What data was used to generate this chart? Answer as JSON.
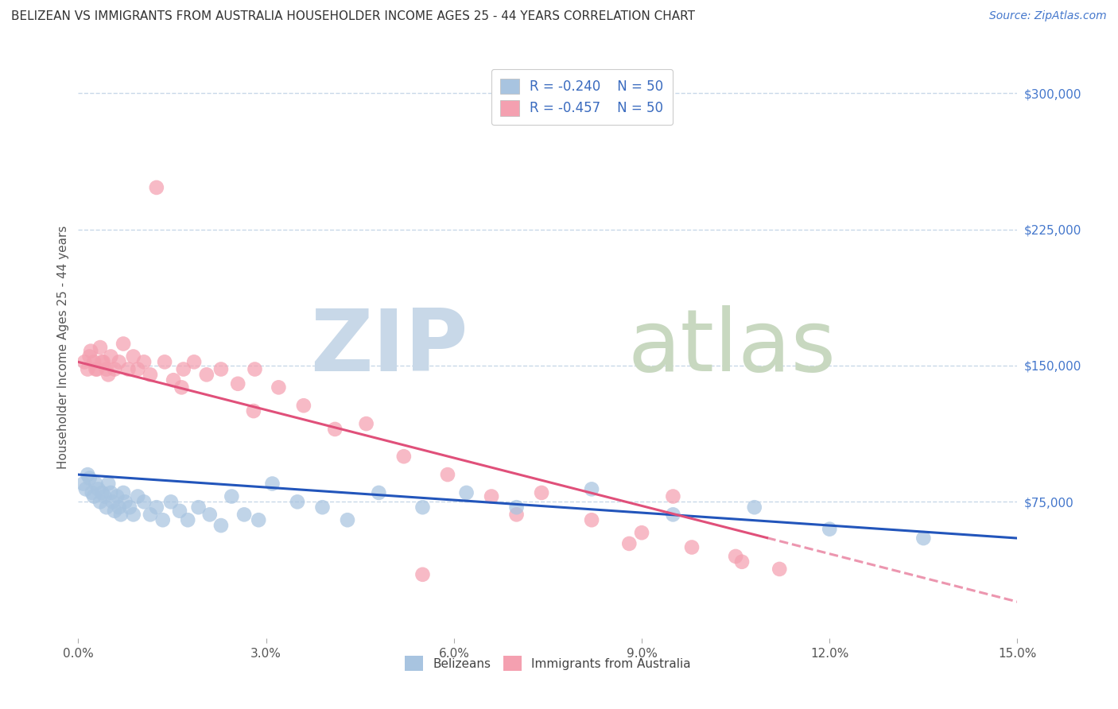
{
  "title": "BELIZEAN VS IMMIGRANTS FROM AUSTRALIA HOUSEHOLDER INCOME AGES 25 - 44 YEARS CORRELATION CHART",
  "source": "Source: ZipAtlas.com",
  "ylabel": "Householder Income Ages 25 - 44 years",
  "xlabel_vals": [
    0.0,
    3.0,
    6.0,
    9.0,
    12.0,
    15.0
  ],
  "ytick_labels": [
    "$75,000",
    "$150,000",
    "$225,000",
    "$300,000"
  ],
  "ytick_vals": [
    75000,
    150000,
    225000,
    300000
  ],
  "r_belizean": -0.24,
  "n_belizean": 50,
  "r_australia": -0.457,
  "n_australia": 50,
  "color_belizean": "#a8c4e0",
  "color_australia": "#f4a0b0",
  "line_color_belizean": "#2255bb",
  "line_color_australia": "#e0507a",
  "background_color": "#ffffff",
  "grid_color": "#c8d8e8",
  "title_color": "#333333",
  "source_color": "#4477cc",
  "tick_color": "#4477cc",
  "legend_text_color": "#3a6bbf",
  "belizean_x": [
    0.08,
    0.12,
    0.15,
    0.18,
    0.22,
    0.25,
    0.28,
    0.32,
    0.35,
    0.38,
    0.42,
    0.45,
    0.48,
    0.52,
    0.55,
    0.58,
    0.62,
    0.65,
    0.68,
    0.72,
    0.75,
    0.82,
    0.88,
    0.95,
    1.05,
    1.15,
    1.25,
    1.35,
    1.48,
    1.62,
    1.75,
    1.92,
    2.1,
    2.28,
    2.45,
    2.65,
    2.88,
    3.1,
    3.5,
    3.9,
    4.3,
    4.8,
    5.5,
    6.2,
    7.0,
    8.2,
    9.5,
    10.8,
    12.0,
    13.5
  ],
  "belizean_y": [
    85000,
    82000,
    90000,
    88000,
    80000,
    78000,
    85000,
    82000,
    75000,
    80000,
    78000,
    72000,
    85000,
    80000,
    75000,
    70000,
    78000,
    72000,
    68000,
    80000,
    75000,
    72000,
    68000,
    78000,
    75000,
    68000,
    72000,
    65000,
    75000,
    70000,
    65000,
    72000,
    68000,
    62000,
    78000,
    68000,
    65000,
    85000,
    75000,
    72000,
    65000,
    80000,
    72000,
    80000,
    72000,
    82000,
    68000,
    72000,
    60000,
    55000
  ],
  "australia_x": [
    0.1,
    0.15,
    0.2,
    0.25,
    0.3,
    0.35,
    0.4,
    0.45,
    0.52,
    0.58,
    0.65,
    0.72,
    0.8,
    0.88,
    0.95,
    1.05,
    1.15,
    1.25,
    1.38,
    1.52,
    1.68,
    1.85,
    2.05,
    2.28,
    2.55,
    2.82,
    3.2,
    3.6,
    4.1,
    4.6,
    5.2,
    5.9,
    6.6,
    7.4,
    8.2,
    9.0,
    9.8,
    10.6,
    0.18,
    0.28,
    0.38,
    0.48,
    1.65,
    2.8,
    5.5,
    7.0,
    8.8,
    9.5,
    10.5,
    11.2
  ],
  "australia_y": [
    152000,
    148000,
    158000,
    152000,
    148000,
    160000,
    152000,
    148000,
    155000,
    148000,
    152000,
    162000,
    148000,
    155000,
    148000,
    152000,
    145000,
    248000,
    152000,
    142000,
    148000,
    152000,
    145000,
    148000,
    140000,
    148000,
    138000,
    128000,
    115000,
    118000,
    100000,
    90000,
    78000,
    80000,
    65000,
    58000,
    50000,
    42000,
    155000,
    148000,
    152000,
    145000,
    138000,
    125000,
    35000,
    68000,
    52000,
    78000,
    45000,
    38000
  ],
  "xmin": 0.0,
  "xmax": 15.0,
  "ymin": 0,
  "ymax": 320000,
  "scatter_size": 180,
  "scatter_alpha": 0.72,
  "line_width": 2.2
}
